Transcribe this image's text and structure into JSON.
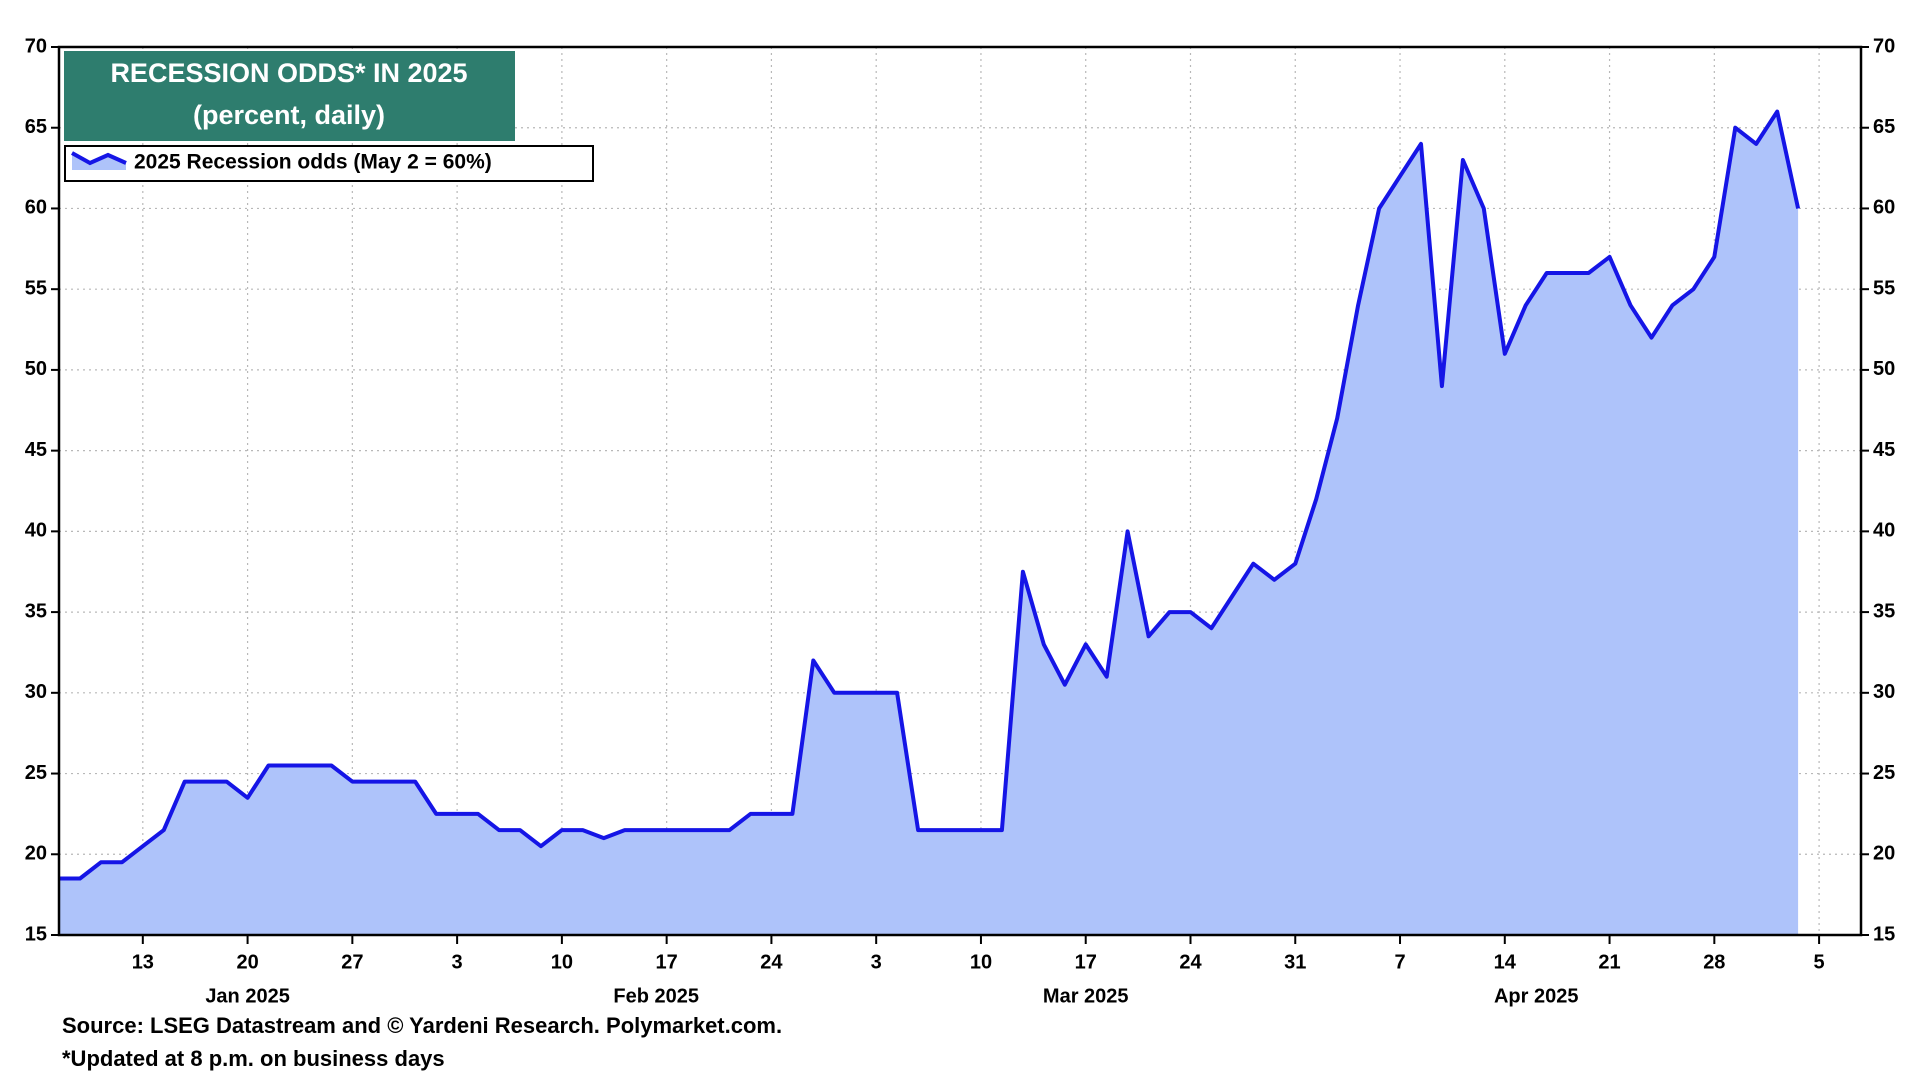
{
  "chart_data": {
    "type": "area",
    "title": "RECESSION ODDS* IN 2025",
    "subtitle": "(percent, daily)",
    "source": "Source: LSEG Datastream and © Yardeni Research. Polymarket.com.",
    "note": "*Updated at 8 p.m. on business days",
    "x": [
      "2025-01-07",
      "2025-01-08",
      "2025-01-09",
      "2025-01-10",
      "2025-01-13",
      "2025-01-14",
      "2025-01-15",
      "2025-01-16",
      "2025-01-17",
      "2025-01-20",
      "2025-01-21",
      "2025-01-22",
      "2025-01-23",
      "2025-01-24",
      "2025-01-27",
      "2025-01-28",
      "2025-01-29",
      "2025-01-30",
      "2025-01-31",
      "2025-02-03",
      "2025-02-04",
      "2025-02-05",
      "2025-02-06",
      "2025-02-07",
      "2025-02-10",
      "2025-02-11",
      "2025-02-12",
      "2025-02-13",
      "2025-02-14",
      "2025-02-17",
      "2025-02-18",
      "2025-02-19",
      "2025-02-20",
      "2025-02-21",
      "2025-02-24",
      "2025-02-25",
      "2025-02-26",
      "2025-02-27",
      "2025-02-28",
      "2025-03-03",
      "2025-03-04",
      "2025-03-05",
      "2025-03-06",
      "2025-03-07",
      "2025-03-10",
      "2025-03-11",
      "2025-03-12",
      "2025-03-13",
      "2025-03-14",
      "2025-03-17",
      "2025-03-18",
      "2025-03-19",
      "2025-03-20",
      "2025-03-21",
      "2025-03-24",
      "2025-03-25",
      "2025-03-26",
      "2025-03-27",
      "2025-03-28",
      "2025-03-31",
      "2025-04-01",
      "2025-04-02",
      "2025-04-03",
      "2025-04-04",
      "2025-04-07",
      "2025-04-08",
      "2025-04-09",
      "2025-04-10",
      "2025-04-11",
      "2025-04-14",
      "2025-04-15",
      "2025-04-16",
      "2025-04-17",
      "2025-04-18",
      "2025-04-21",
      "2025-04-22",
      "2025-04-23",
      "2025-04-24",
      "2025-04-25",
      "2025-04-28",
      "2025-04-29",
      "2025-04-30",
      "2025-05-01",
      "2025-05-02"
    ],
    "series": [
      {
        "name": "2025 Recession odds (May 2 = 60%)",
        "color": "#1515e6",
        "fill_color": "#aec3fa",
        "values": [
          18.5,
          18.5,
          19.5,
          19.5,
          20.5,
          21.5,
          24.5,
          24.5,
          24.5,
          23.5,
          25.5,
          25.5,
          25.5,
          25.5,
          24.5,
          24.5,
          24.5,
          24.5,
          22.5,
          22.5,
          22.5,
          21.5,
          21.5,
          20.5,
          21.5,
          21.5,
          21,
          21.5,
          21.5,
          21.5,
          21.5,
          21.5,
          21.5,
          22.5,
          22.5,
          22.5,
          32,
          30,
          30,
          30,
          30,
          21.5,
          21.5,
          21.5,
          21.5,
          21.5,
          37.5,
          33,
          30.5,
          33,
          31,
          40,
          33.5,
          35,
          35,
          34,
          36,
          38,
          37,
          38,
          42,
          47,
          54,
          60,
          62,
          64,
          49,
          63,
          60,
          51,
          54,
          56,
          56,
          56,
          57,
          54,
          52,
          54,
          55,
          57,
          65,
          64,
          66,
          60
        ]
      }
    ],
    "xlim": [
      "2025-01-07",
      "2025-05-07"
    ],
    "xticks": [
      {
        "value": "2025-01-13",
        "label": "13"
      },
      {
        "value": "2025-01-20",
        "label": "20"
      },
      {
        "value": "2025-01-27",
        "label": "27"
      },
      {
        "value": "2025-02-03",
        "label": "3"
      },
      {
        "value": "2025-02-10",
        "label": "10"
      },
      {
        "value": "2025-02-17",
        "label": "17"
      },
      {
        "value": "2025-02-24",
        "label": "24"
      },
      {
        "value": "2025-03-03",
        "label": "3"
      },
      {
        "value": "2025-03-10",
        "label": "10"
      },
      {
        "value": "2025-03-17",
        "label": "17"
      },
      {
        "value": "2025-03-24",
        "label": "24"
      },
      {
        "value": "2025-03-31",
        "label": "31"
      },
      {
        "value": "2025-04-07",
        "label": "7"
      },
      {
        "value": "2025-04-14",
        "label": "14"
      },
      {
        "value": "2025-04-21",
        "label": "21"
      },
      {
        "value": "2025-04-28",
        "label": "28"
      },
      {
        "value": "2025-05-05",
        "label": "5"
      }
    ],
    "month_labels": [
      {
        "value": "2025-01",
        "label": "Jan 2025"
      },
      {
        "value": "2025-02",
        "label": "Feb 2025"
      },
      {
        "value": "2025-03",
        "label": "Mar 2025"
      },
      {
        "value": "2025-04",
        "label": "Apr 2025"
      }
    ],
    "ylim": [
      15,
      70
    ],
    "yticks": [
      15,
      20,
      25,
      30,
      35,
      40,
      45,
      50,
      55,
      60,
      65,
      70
    ],
    "grid": true
  }
}
